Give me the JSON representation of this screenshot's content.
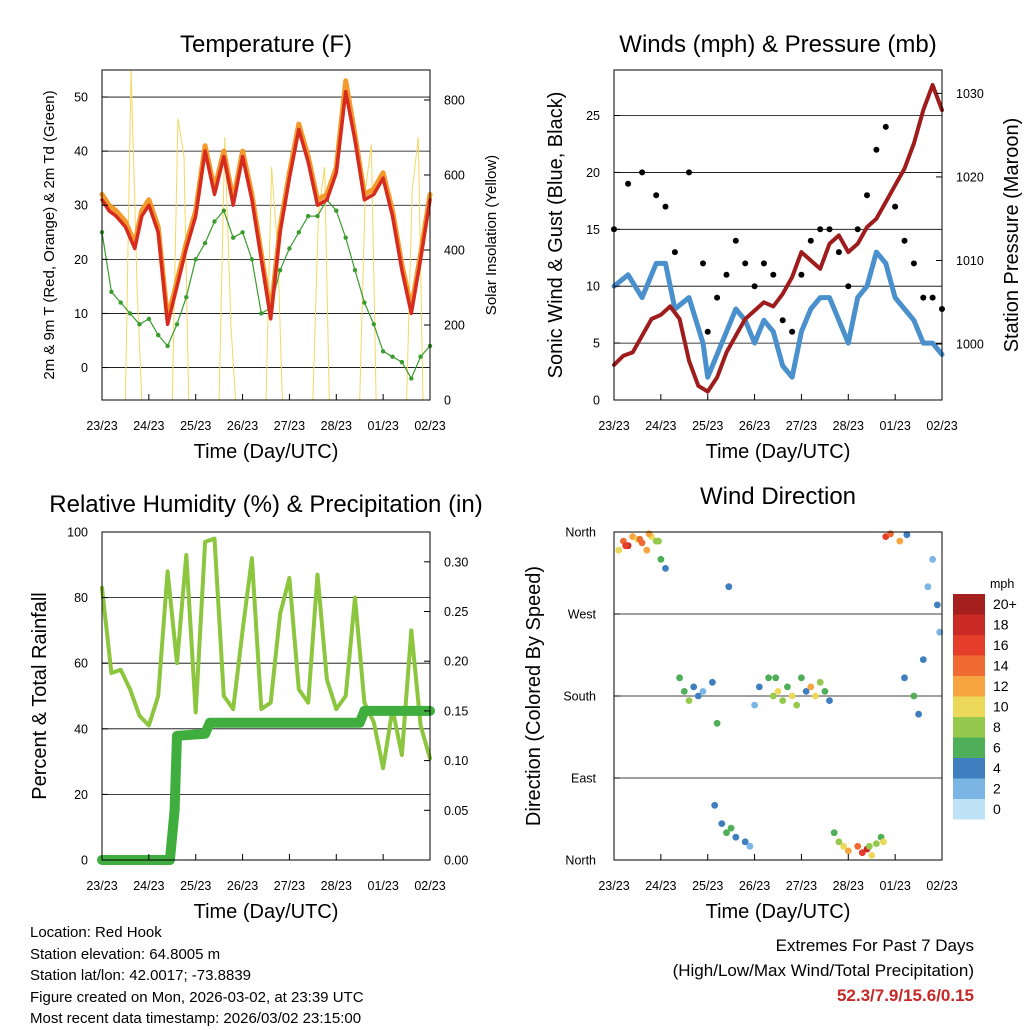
{
  "chart_data": [
    {
      "type": "line",
      "title": "Temperature (F)",
      "xlabel": "Time (Day/UTC)",
      "ylabel": "2m & 9m T (Red, Orange) & 2m Td (Green)",
      "ylabel_right": "Solar Insolation (Yellow)",
      "ylim": [
        -6,
        55
      ],
      "y_ticks": [
        0,
        10,
        20,
        30,
        40,
        50
      ],
      "ylim_right": [
        0,
        880
      ],
      "y_ticks_right": [
        0,
        200,
        400,
        600,
        800
      ],
      "x_ticks": [
        "23/23",
        "24/23",
        "25/23",
        "26/23",
        "27/23",
        "28/23",
        "01/23",
        "02/23"
      ],
      "series": [
        {
          "name": "2m T",
          "color": "#d62b1f",
          "x": [
            0,
            0.15,
            0.3,
            0.5,
            0.7,
            0.85,
            1.0,
            1.2,
            1.4,
            1.6,
            1.8,
            2.0,
            2.2,
            2.4,
            2.6,
            2.8,
            3.0,
            3.2,
            3.4,
            3.6,
            3.8,
            4.0,
            4.2,
            4.4,
            4.6,
            4.8,
            5.0,
            5.2,
            5.4,
            5.6,
            5.8,
            6.0,
            6.2,
            6.4,
            6.6,
            6.8,
            7.0
          ],
          "values": [
            31,
            29,
            28,
            26,
            22,
            28,
            30,
            25,
            8,
            15,
            22,
            28,
            40,
            32,
            39,
            30,
            39,
            31,
            20,
            9,
            25,
            35,
            44,
            38,
            30,
            31,
            36,
            51,
            42,
            31,
            32,
            35,
            28,
            18,
            10,
            20,
            31
          ]
        },
        {
          "name": "9m T",
          "color": "#f39a2b",
          "x": [
            0,
            0.15,
            0.3,
            0.5,
            0.7,
            0.85,
            1.0,
            1.2,
            1.4,
            1.6,
            1.8,
            2.0,
            2.2,
            2.4,
            2.6,
            2.8,
            3.0,
            3.2,
            3.4,
            3.6,
            3.8,
            4.0,
            4.2,
            4.4,
            4.6,
            4.8,
            5.0,
            5.2,
            5.4,
            5.6,
            5.8,
            6.0,
            6.2,
            6.4,
            6.6,
            6.8,
            7.0
          ],
          "values": [
            32,
            30,
            29,
            27,
            23,
            29,
            31,
            26,
            9,
            16,
            23,
            29,
            41,
            33,
            40,
            31,
            40,
            32,
            21,
            10,
            26,
            36,
            45,
            39,
            31,
            32,
            37,
            53,
            43,
            32,
            33,
            36,
            29,
            19,
            11,
            21,
            32
          ]
        },
        {
          "name": "2m Td",
          "color": "#3a9c2e",
          "x": [
            0,
            0.2,
            0.4,
            0.6,
            0.8,
            1.0,
            1.2,
            1.4,
            1.6,
            1.8,
            2.0,
            2.2,
            2.4,
            2.6,
            2.8,
            3.0,
            3.2,
            3.4,
            3.6,
            3.8,
            4.0,
            4.2,
            4.4,
            4.6,
            4.8,
            5.0,
            5.2,
            5.4,
            5.6,
            5.8,
            6.0,
            6.2,
            6.4,
            6.6,
            6.8,
            7.0
          ],
          "values": [
            25,
            14,
            12,
            10,
            8,
            9,
            6,
            4,
            8,
            13,
            20,
            23,
            27,
            29,
            24,
            25,
            20,
            10,
            11,
            18,
            22,
            25,
            28,
            28,
            31,
            29,
            24,
            18,
            12,
            8,
            3,
            2,
            1,
            -2,
            2,
            4
          ]
        },
        {
          "name": "Solar Insolation",
          "color": "#f3d860",
          "axis": "right",
          "x": [
            0,
            0.3,
            0.5,
            0.62,
            0.75,
            0.85,
            1.0,
            1.3,
            1.5,
            1.62,
            1.75,
            1.85,
            2.0,
            2.3,
            2.5,
            2.62,
            2.75,
            2.85,
            3.0,
            3.3,
            3.5,
            3.62,
            3.75,
            3.85,
            4.0,
            4.3,
            4.5,
            4.62,
            4.75,
            4.85,
            5.0,
            5.3,
            5.5,
            5.62,
            5.75,
            5.85,
            6.0,
            6.3,
            6.5,
            6.62,
            6.75,
            6.85,
            7.0
          ],
          "values": [
            0,
            0,
            0,
            880,
            300,
            0,
            0,
            0,
            0,
            750,
            650,
            0,
            0,
            0,
            0,
            700,
            200,
            0,
            0,
            0,
            0,
            620,
            400,
            0,
            0,
            0,
            0,
            500,
            620,
            0,
            0,
            0,
            0,
            560,
            680,
            0,
            0,
            0,
            0,
            560,
            700,
            0,
            0
          ]
        }
      ]
    },
    {
      "type": "scatter",
      "title": "Winds (mph) & Pressure (mb)",
      "xlabel": "Time (Day/UTC)",
      "ylabel": "Sonic Wind & Gust (Blue, Black)",
      "ylabel_right": "Station Pressure (Maroon)",
      "ylim": [
        0,
        29
      ],
      "y_ticks": [
        0,
        5,
        10,
        15,
        20,
        25
      ],
      "ylim_right": [
        993.3,
        1032.8
      ],
      "y_ticks_right": [
        1000,
        1010,
        1020,
        1030
      ],
      "x_ticks": [
        "23/23",
        "24/23",
        "25/23",
        "26/23",
        "27/23",
        "28/23",
        "01/23",
        "02/23"
      ],
      "series": [
        {
          "name": "Sonic Wind",
          "color": "#4a90cc",
          "x": [
            0,
            0.3,
            0.6,
            0.9,
            1.1,
            1.3,
            1.6,
            1.9,
            2.0,
            2.2,
            2.4,
            2.6,
            2.8,
            3.0,
            3.2,
            3.4,
            3.6,
            3.8,
            4.0,
            4.2,
            4.4,
            4.6,
            4.8,
            5.0,
            5.2,
            5.4,
            5.6,
            5.8,
            6.0,
            6.2,
            6.4,
            6.6,
            6.8,
            7.0
          ],
          "values": [
            10,
            11,
            9,
            12,
            12,
            8,
            9,
            5,
            2,
            4,
            6,
            8,
            7,
            5,
            7,
            6,
            3,
            2,
            6,
            8,
            9,
            9,
            7,
            5,
            9,
            10,
            13,
            12,
            9,
            8,
            7,
            5,
            5,
            4
          ]
        },
        {
          "name": "Gust",
          "color": "#000000",
          "x": [
            0,
            0.3,
            0.6,
            0.9,
            1.1,
            1.3,
            1.6,
            1.9,
            2.0,
            2.2,
            2.4,
            2.6,
            2.8,
            3.0,
            3.2,
            3.4,
            3.6,
            3.8,
            4.0,
            4.2,
            4.4,
            4.6,
            4.8,
            5.0,
            5.2,
            5.4,
            5.6,
            5.8,
            6.0,
            6.2,
            6.4,
            6.6,
            6.8,
            7.0
          ],
          "values": [
            15,
            19,
            20,
            18,
            17,
            13,
            20,
            12,
            6,
            9,
            11,
            14,
            12,
            10,
            12,
            11,
            7,
            6,
            11,
            14,
            15,
            15,
            13,
            10,
            15,
            18,
            22,
            24,
            17,
            14,
            12,
            9,
            9,
            8
          ]
        },
        {
          "name": "Station Pressure",
          "color": "#9e1c1c",
          "axis": "right",
          "x": [
            0,
            0.2,
            0.4,
            0.6,
            0.8,
            1.0,
            1.2,
            1.4,
            1.6,
            1.8,
            2.0,
            2.2,
            2.4,
            2.6,
            2.8,
            3.0,
            3.2,
            3.4,
            3.6,
            3.8,
            4.0,
            4.2,
            4.4,
            4.6,
            4.8,
            5.0,
            5.2,
            5.4,
            5.6,
            5.8,
            6.0,
            6.2,
            6.4,
            6.6,
            6.8,
            7.0
          ],
          "values": [
            997.5,
            998.6,
            999,
            1001,
            1003,
            1003.5,
            1004.5,
            1003,
            998,
            995,
            994.3,
            996,
            999,
            1001,
            1003,
            1004,
            1005,
            1004.5,
            1006,
            1008,
            1011,
            1010,
            1009,
            1012,
            1013,
            1011,
            1012,
            1014,
            1015,
            1017,
            1019,
            1021,
            1024,
            1028,
            1031,
            1028
          ]
        }
      ]
    },
    {
      "type": "line",
      "title": "Relative Humidity (%) & Precipitation (in)",
      "xlabel": "Time (Day/UTC)",
      "ylabel": "Percent & Total Rainfall",
      "ylim": [
        0,
        100
      ],
      "y_ticks": [
        0,
        20,
        40,
        60,
        80,
        100
      ],
      "ylim_right": [
        0,
        0.33
      ],
      "y_ticks_right": [
        "0.00",
        "0.05",
        "0.10",
        "0.15",
        "0.20",
        "0.25",
        "0.30"
      ],
      "x_ticks": [
        "23/23",
        "24/23",
        "25/23",
        "26/23",
        "27/23",
        "28/23",
        "01/23",
        "02/23"
      ],
      "series": [
        {
          "name": "Relative Humidity",
          "color": "#8cc63f",
          "x": [
            0,
            0.2,
            0.4,
            0.6,
            0.8,
            1.0,
            1.2,
            1.4,
            1.6,
            1.8,
            2.0,
            2.2,
            2.4,
            2.6,
            2.8,
            3.0,
            3.2,
            3.4,
            3.6,
            3.8,
            4.0,
            4.2,
            4.4,
            4.6,
            4.8,
            5.0,
            5.2,
            5.4,
            5.6,
            5.8,
            6.0,
            6.2,
            6.4,
            6.6,
            6.8,
            7.0
          ],
          "values": [
            83,
            57,
            58,
            52,
            44,
            41,
            50,
            88,
            60,
            93,
            45,
            97,
            98,
            50,
            46,
            70,
            92,
            46,
            48,
            75,
            86,
            52,
            48,
            87,
            55,
            46,
            50,
            80,
            48,
            42,
            28,
            46,
            32,
            70,
            41,
            31
          ]
        },
        {
          "name": "Total Precipitation",
          "color": "#3fae3f",
          "axis": "right",
          "x": [
            0,
            1.1,
            1.45,
            1.55,
            1.6,
            2.2,
            2.3,
            4.0,
            5.5,
            5.6,
            6.0,
            7.0
          ],
          "values": [
            0,
            0,
            0,
            0.05,
            0.125,
            0.127,
            0.138,
            0.138,
            0.138,
            0.15,
            0.15,
            0.15
          ]
        }
      ]
    },
    {
      "type": "scatter",
      "title": "Wind Direction",
      "xlabel": "Time (Day/UTC)",
      "ylabel": "Direction (Colored By Speed)",
      "y_ticks": [
        "North",
        "East",
        "South",
        "West",
        "North"
      ],
      "x_ticks": [
        "23/23",
        "24/23",
        "25/23",
        "26/23",
        "27/23",
        "28/23",
        "01/23",
        "02/23"
      ],
      "legend": {
        "title": "mph",
        "labels": [
          "20+",
          "18",
          "16",
          "14",
          "12",
          "10",
          "8",
          "6",
          "4",
          "2",
          "0"
        ],
        "colors": [
          "#a51f1f",
          "#c92a26",
          "#e43d2a",
          "#f06b33",
          "#f7a540",
          "#ecd95a",
          "#95c94d",
          "#4fae58",
          "#3f7fc0",
          "#7bb5e3",
          "#bfe3f6"
        ]
      },
      "points": {
        "t": [
          0.1,
          0.2,
          0.3,
          0.4,
          0.5,
          0.6,
          0.7,
          0.8,
          0.9,
          1.0,
          1.1,
          1.4,
          1.5,
          1.6,
          1.7,
          1.8,
          1.9,
          2.1,
          2.2,
          2.3,
          2.4,
          2.5,
          2.6,
          2.8,
          2.9,
          3.0,
          3.1,
          3.3,
          3.4,
          3.5,
          3.6,
          3.7,
          3.8,
          3.9,
          4.0,
          4.1,
          4.2,
          4.3,
          4.4,
          4.5,
          4.6,
          4.7,
          4.8,
          4.9,
          5.0,
          5.2,
          5.3,
          5.4,
          5.5,
          5.6,
          5.7,
          5.8,
          5.9,
          6.1,
          6.2,
          6.4,
          6.5,
          6.6,
          6.7,
          6.8,
          6.9,
          0.25,
          0.55,
          0.75,
          0.95,
          2.15,
          2.45,
          3.45,
          5.45,
          5.75,
          6.25,
          6.95
        ],
        "dir": [
          340,
          350,
          345,
          355,
          352,
          348,
          340,
          355,
          350,
          330,
          320,
          200,
          185,
          175,
          190,
          180,
          185,
          195,
          150,
          40,
          30,
          35,
          25,
          20,
          15,
          170,
          190,
          200,
          180,
          185,
          175,
          190,
          180,
          170,
          200,
          185,
          190,
          180,
          195,
          185,
          175,
          30,
          20,
          15,
          10,
          15,
          8,
          12,
          5,
          18,
          25,
          355,
          358,
          350,
          200,
          180,
          160,
          220,
          300,
          330,
          280,
          345,
          352,
          358,
          350,
          60,
          300,
          200,
          15,
          20,
          357,
          250
        ],
        "speed": [
          10,
          14,
          18,
          12,
          10,
          14,
          12,
          10,
          8,
          6,
          4,
          5,
          6,
          8,
          4,
          3,
          2,
          4,
          5,
          4,
          6,
          6,
          4,
          3,
          2,
          2,
          4,
          6,
          8,
          10,
          8,
          6,
          10,
          8,
          6,
          4,
          12,
          10,
          8,
          6,
          4,
          6,
          8,
          10,
          12,
          14,
          16,
          18,
          10,
          8,
          6,
          16,
          14,
          12,
          4,
          6,
          4,
          3,
          2,
          2,
          4,
          16,
          14,
          12,
          8,
          4,
          3,
          6,
          8,
          10,
          4,
          2
        ]
      }
    }
  ],
  "info": {
    "location": "Location: Red Hook",
    "elevation": "Station elevation: 64.8005 m",
    "latlon": "Station lat/lon: 42.0017; -73.8839",
    "created": "Figure created on Mon, 2026-03-02, at 23:39 UTC",
    "recent": "Most recent data timestamp: 2026/03/02 23:15:00"
  },
  "extremes": {
    "line1": "Extremes For Past 7 Days",
    "line2": "(High/Low/Max Wind/Total Precipitation)",
    "values": "52.3/7.9/15.6/0.15"
  }
}
